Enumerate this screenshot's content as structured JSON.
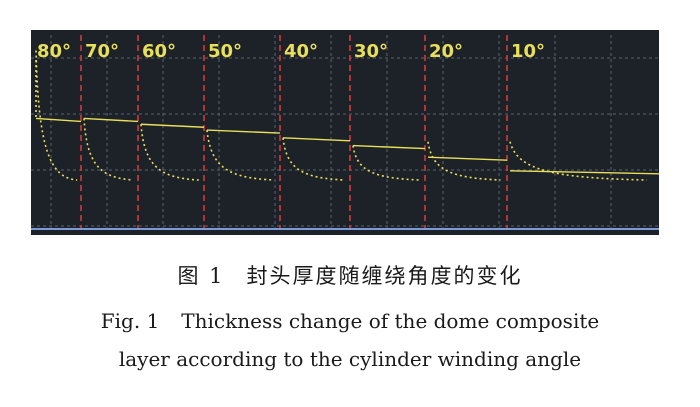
{
  "figure": {
    "background_color": "#1d2128",
    "grid_color": "#5a626e",
    "separator_color": "#d23a3a",
    "curve_color": "#e8e05a",
    "baseline_color": "#7a9ad8",
    "panels": [
      {
        "label": "80°",
        "thickness_level": 0.57,
        "dome_start_level": 0.92
      },
      {
        "label": "70°",
        "thickness_level": 0.57,
        "dome_start_level": 0.57
      },
      {
        "label": "60°",
        "thickness_level": 0.54,
        "dome_start_level": 0.54
      },
      {
        "label": "50°",
        "thickness_level": 0.51,
        "dome_start_level": 0.51
      },
      {
        "label": "40°",
        "thickness_level": 0.47,
        "dome_start_level": 0.47
      },
      {
        "label": "30°",
        "thickness_level": 0.43,
        "dome_start_level": 0.43
      },
      {
        "label": "20°",
        "thickness_level": 0.37,
        "dome_start_level": 0.45
      },
      {
        "label": "10°",
        "thickness_level": 0.3,
        "dome_start_level": 0.45
      }
    ]
  },
  "caption": {
    "cn_number": "图 1",
    "cn_title": "封头厚度随缠绕角度的变化",
    "en_number": "Fig. 1",
    "en_title_line1": "Thickness change of the dome composite",
    "en_title_line2": "layer according to the cylinder winding angle"
  }
}
